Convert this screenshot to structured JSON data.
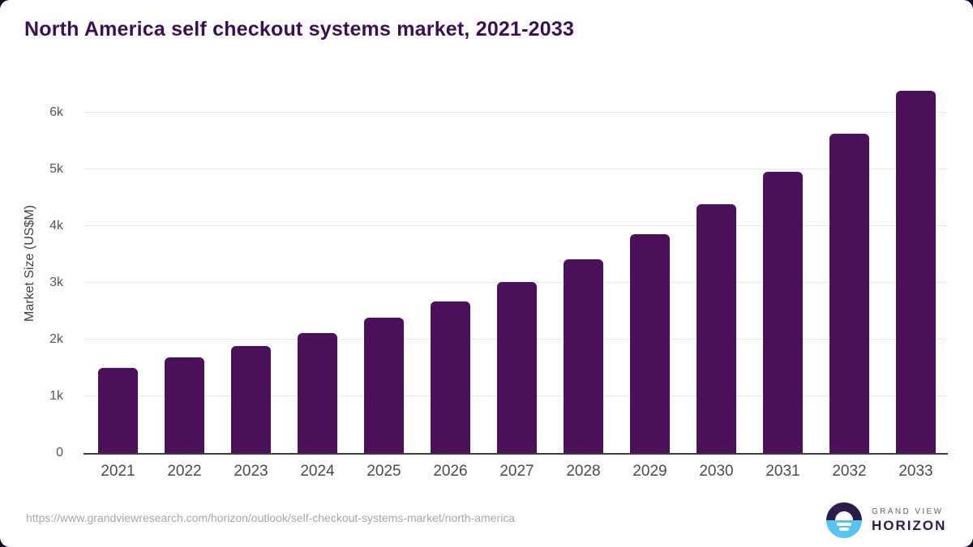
{
  "page": {
    "title": "North America self checkout systems market, 2021-2033"
  },
  "chart_data": {
    "type": "bar",
    "title": "North America self checkout systems market, 2021-2033",
    "categories": [
      "2021",
      "2022",
      "2023",
      "2024",
      "2025",
      "2026",
      "2027",
      "2028",
      "2029",
      "2030",
      "2031",
      "2032",
      "2033"
    ],
    "values": [
      1500,
      1690,
      1890,
      2120,
      2380,
      2670,
      3020,
      3420,
      3860,
      4380,
      4950,
      5630,
      6380
    ],
    "xlabel": "",
    "ylabel": "Market Size (US$M)",
    "ylim": [
      0,
      6700
    ],
    "yticks": [
      {
        "v": 0,
        "label": "0"
      },
      {
        "v": 1000,
        "label": "1k"
      },
      {
        "v": 2000,
        "label": "2k"
      },
      {
        "v": 3000,
        "label": "3k"
      },
      {
        "v": 4000,
        "label": "4k"
      },
      {
        "v": 5000,
        "label": "5k"
      },
      {
        "v": 6000,
        "label": "6k"
      }
    ],
    "grid": "horizontal",
    "legend": "none",
    "bar_color": "#4a1158"
  },
  "footer": {
    "source_url": "https://www.grandviewresearch.com/horizon/outlook/self-checkout-systems-market/north-america",
    "logo": {
      "line1": "GRAND VIEW",
      "line2": "HORIZON",
      "icon": "sunrise-horizon-icon"
    }
  },
  "colors": {
    "title": "#3a1053",
    "bar": "#4a1158",
    "gridline": "#e8e8e8",
    "axis_line": "#3c3c3c",
    "x_tick": "#4a4a4a",
    "y_tick": "#555555",
    "y_axis_label": "#3f3f3f",
    "source_url": "#a6a6a6",
    "logo_dark": "#2c1c49",
    "logo_blue": "#56c3f0",
    "logo_text_gray": "#62626e"
  }
}
